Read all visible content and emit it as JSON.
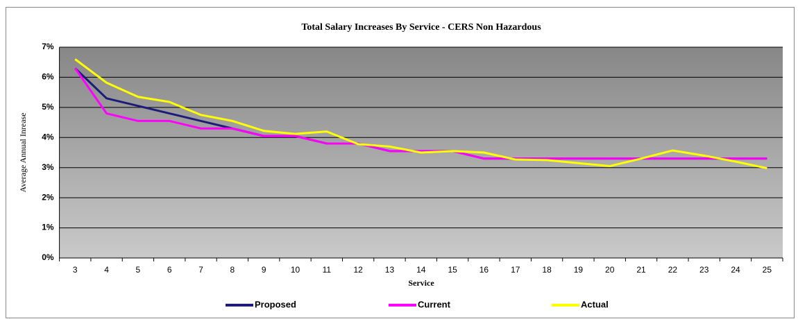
{
  "chart_data": {
    "type": "line",
    "title": "Total Salary Increases By Service - CERS Non Hazardous",
    "xlabel": "Service",
    "ylabel": "Average Annual Inrease",
    "categories": [
      "3",
      "4",
      "5",
      "6",
      "7",
      "8",
      "9",
      "10",
      "11",
      "12",
      "13",
      "14",
      "15",
      "16",
      "17",
      "18",
      "19",
      "20",
      "21",
      "22",
      "23",
      "24",
      "25"
    ],
    "series": [
      {
        "name": "Proposed",
        "color": "#1c1c78",
        "values": [
          6.3,
          5.3,
          5.05,
          4.8,
          4.55,
          4.3,
          4.05,
          4.05,
          3.8,
          3.8,
          3.55,
          3.55,
          3.55,
          3.3,
          3.3,
          3.3,
          3.3,
          3.3,
          3.3,
          3.3,
          3.3,
          3.3,
          3.3
        ]
      },
      {
        "name": "Current",
        "color": "#ff00ff",
        "values": [
          6.3,
          4.8,
          4.55,
          4.55,
          4.3,
          4.3,
          4.05,
          4.05,
          3.8,
          3.8,
          3.55,
          3.55,
          3.55,
          3.3,
          3.3,
          3.3,
          3.3,
          3.3,
          3.3,
          3.3,
          3.3,
          3.3,
          3.3
        ]
      },
      {
        "name": "Actual",
        "color": "#ffff00",
        "values": [
          6.6,
          5.82,
          5.35,
          5.18,
          4.75,
          4.55,
          4.22,
          4.12,
          4.2,
          3.78,
          3.7,
          3.5,
          3.55,
          3.5,
          3.27,
          3.25,
          3.15,
          3.05,
          3.3,
          3.57,
          3.4,
          3.2,
          2.98
        ]
      }
    ],
    "ylim": [
      0,
      7
    ],
    "yticks": [
      {
        "value": 0,
        "label": "0%"
      },
      {
        "value": 1,
        "label": "1%"
      },
      {
        "value": 2,
        "label": "2%"
      },
      {
        "value": 3,
        "label": "3%"
      },
      {
        "value": 4,
        "label": "4%"
      },
      {
        "value": 5,
        "label": "5%"
      },
      {
        "value": 6,
        "label": "6%"
      },
      {
        "value": 7,
        "label": "7%"
      }
    ],
    "grid": true,
    "legend": "bottom"
  }
}
